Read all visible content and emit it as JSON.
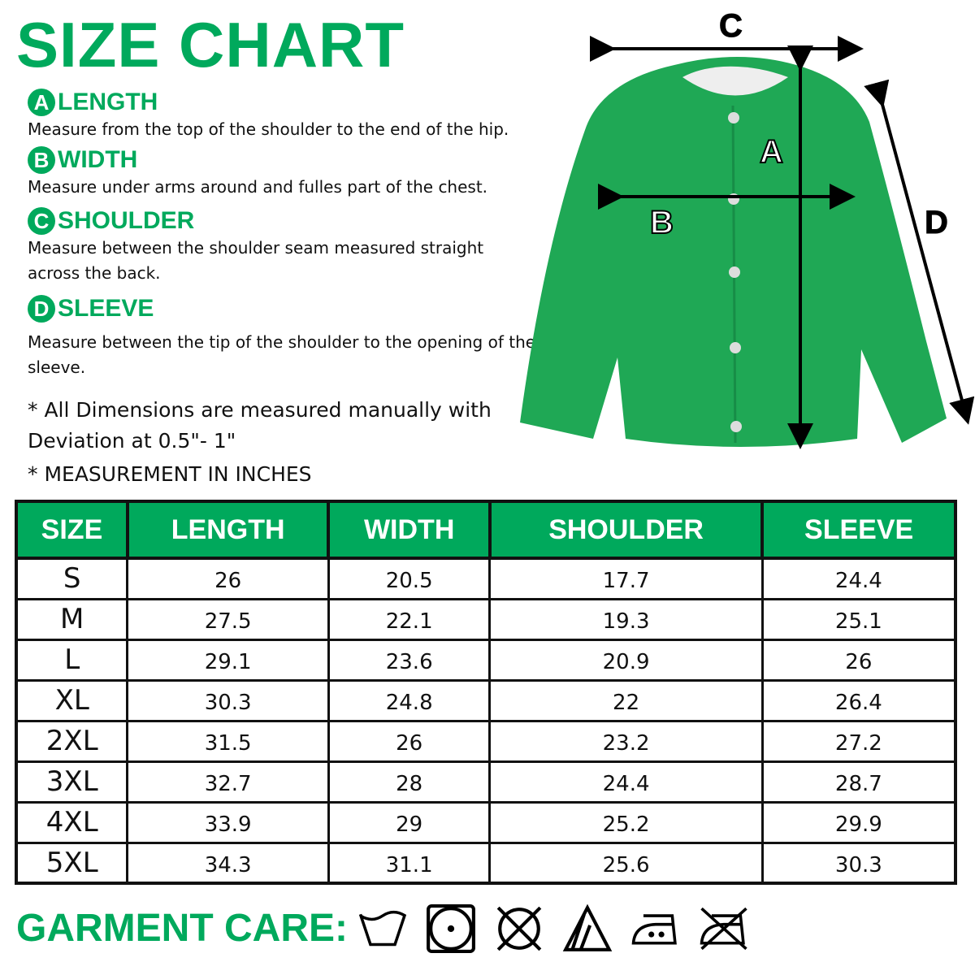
{
  "title": "SIZE CHART",
  "sections": [
    {
      "letter": "A",
      "heading": "LENGTH",
      "text": "Measure from the top of the shoulder to the end of the hip."
    },
    {
      "letter": "B",
      "heading": "WIDTH",
      "text": "Measure under arms around and fulles part of the chest."
    },
    {
      "letter": "C",
      "heading": "SHOULDER",
      "text": "Measure between the shoulder seam measured straight across the back."
    },
    {
      "letter": "D",
      "heading": "SLEEVE",
      "text": "Measure between the tip of the shoulder to the opening of the sleeve."
    }
  ],
  "notes": [
    "* All Dimensions are measured manually with Deviation at 0.5\"- 1\"",
    "* MEASUREMENT IN INCHES"
  ],
  "diagram_labels": {
    "a": "A",
    "b": "B",
    "c": "C",
    "d": "D"
  },
  "colors": {
    "accent": "#00a95c",
    "garment": "#1fa855"
  },
  "table": {
    "headers": [
      "SIZE",
      "LENGTH",
      "WIDTH",
      "SHOULDER",
      "SLEEVE"
    ],
    "rows": [
      [
        "S",
        "26",
        "20.5",
        "17.7",
        "24.4"
      ],
      [
        "M",
        "27.5",
        "22.1",
        "19.3",
        "25.1"
      ],
      [
        "L",
        "29.1",
        "23.6",
        "20.9",
        "26"
      ],
      [
        "XL",
        "30.3",
        "24.8",
        "22",
        "26.4"
      ],
      [
        "2XL",
        "31.5",
        "26",
        "23.2",
        "27.2"
      ],
      [
        "3XL",
        "32.7",
        "28",
        "24.4",
        "28.7"
      ],
      [
        "4XL",
        "33.9",
        "29",
        "25.2",
        "29.9"
      ],
      [
        "5XL",
        "34.3",
        "31.1",
        "25.6",
        "30.3"
      ]
    ]
  },
  "care": {
    "label": "GARMENT CARE:",
    "icons": [
      "wash-basin-icon",
      "tumble-dry-icon",
      "do-not-dry-clean-icon",
      "bleach-icon",
      "iron-medium-icon",
      "do-not-iron-icon"
    ]
  }
}
